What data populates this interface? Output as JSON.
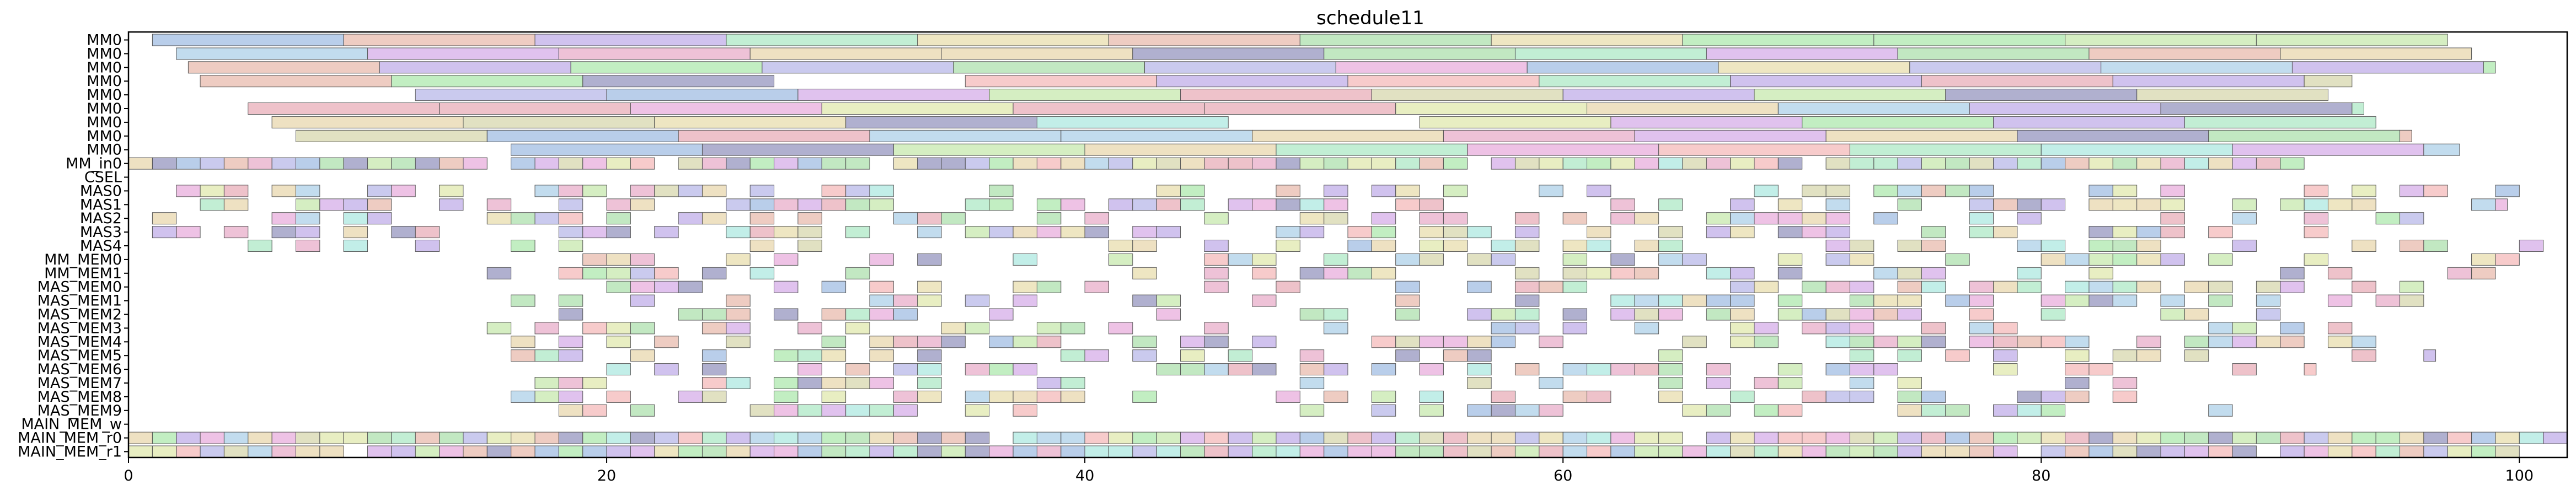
{
  "chart_data": {
    "type": "gantt",
    "title": "schedule11",
    "xlabel": "",
    "ylabel": "",
    "xlim": [
      0,
      102
    ],
    "x_ticks": [
      0,
      20,
      40,
      60,
      80,
      100
    ],
    "grid": false,
    "legend": "none",
    "bar_alpha": 0.55,
    "rows": [
      "MM0",
      "MM0",
      "MM0",
      "MM0",
      "MM0",
      "MM0",
      "MM0",
      "MM0",
      "MM0",
      "MM_in0",
      "CSEL",
      "MAS0",
      "MAS1",
      "MAS2",
      "MAS3",
      "MAS4",
      "MM_MEM0",
      "MM_MEM1",
      "MAS_MEM0",
      "MAS_MEM1",
      "MAS_MEM2",
      "MAS_MEM3",
      "MAS_MEM4",
      "MAS_MEM5",
      "MAS_MEM6",
      "MAS_MEM7",
      "MAS_MEM8",
      "MAS_MEM9",
      "MAIN_MEM_w",
      "MAIN_MEM_r0",
      "MAIN_MEM_r1"
    ],
    "row_fill": [
      {
        "start": 1.0,
        "end": 97.0,
        "step": 8.0
      },
      {
        "start": 2.0,
        "end": 98.0,
        "step": 8.0
      },
      {
        "start": 2.5,
        "end": 99.0,
        "step": 8.0
      },
      {
        "start": 3.0,
        "end": 93.0,
        "step": 8.0
      },
      {
        "start": 4.0,
        "end": 92.0,
        "step": 8.0
      },
      {
        "start": 5.0,
        "end": 93.5,
        "step": 8.0
      },
      {
        "start": 6.0,
        "end": 94.0,
        "step": 8.0
      },
      {
        "start": 7.0,
        "end": 95.5,
        "step": 8.0
      },
      {
        "start": 8.0,
        "end": 97.5,
        "step": 8.0
      },
      {
        "start": 0.0,
        "end": 91.0,
        "step": 1.0
      },
      null,
      {
        "start": 1.0,
        "end": 102.0,
        "step": 1.0
      },
      {
        "start": 1.0,
        "end": 99.5,
        "step": 1.0
      },
      {
        "start": 1.0,
        "end": 97.5,
        "step": 1.0
      },
      {
        "start": 1.0,
        "end": 96.0,
        "step": 1.0
      },
      {
        "start": 1.0,
        "end": 101.5,
        "step": 1.0
      },
      {
        "start": 15.0,
        "end": 100.5,
        "step": 1.0
      },
      {
        "start": 15.0,
        "end": 101.0,
        "step": 1.0
      },
      {
        "start": 16.0,
        "end": 98.0,
        "step": 1.0
      },
      {
        "start": 16.0,
        "end": 96.5,
        "step": 1.0
      },
      {
        "start": 15.0,
        "end": 94.0,
        "step": 1.0
      },
      {
        "start": 15.0,
        "end": 94.0,
        "step": 1.0
      },
      {
        "start": 16.0,
        "end": 94.0,
        "step": 1.0
      },
      {
        "start": 16.0,
        "end": 96.5,
        "step": 1.0
      },
      {
        "start": 16.0,
        "end": 91.5,
        "step": 1.0
      },
      {
        "start": 16.0,
        "end": 84.5,
        "step": 1.0
      },
      {
        "start": 16.0,
        "end": 84.5,
        "step": 1.0
      },
      {
        "start": 16.0,
        "end": 88.5,
        "step": 1.0
      },
      null,
      {
        "start": 0.0,
        "end": 102.0,
        "step": 1.0
      },
      {
        "start": 0.0,
        "end": 100.0,
        "step": 1.0
      }
    ],
    "palette": [
      "#9f9fe0",
      "#8fd68f",
      "#e08fcf",
      "#e0c98f",
      "#8fe0d6",
      "#c68fe0",
      "#e0a28f",
      "#7fa6d9",
      "#d6e08f",
      "#e08f9f",
      "#8fbfe0",
      "#b3e08f",
      "#e0d28f",
      "#a98fe0",
      "#8fe0b0",
      "#e08fb6",
      "#6f6fa8",
      "#c9c98f",
      "#8fe08f",
      "#f0a0a0"
    ],
    "fill_probability_dense": 0.96,
    "fill_probability_sparse": 0.45
  }
}
